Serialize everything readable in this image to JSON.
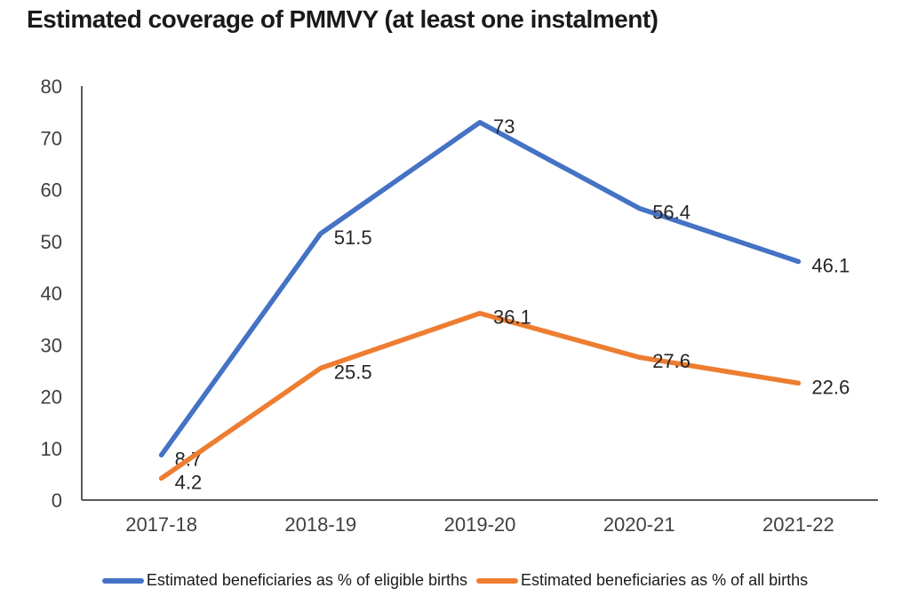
{
  "chart_data": {
    "type": "line",
    "title": "Estimated coverage of PMMVY (at least one instalment)",
    "categories": [
      "2017-18",
      "2018-19",
      "2019-20",
      "2020-21",
      "2021-22"
    ],
    "series": [
      {
        "name": "Estimated beneficiaries as % of eligible births",
        "color": "#4472C4",
        "values": [
          8.7,
          51.5,
          73,
          56.4,
          46.1
        ],
        "labels": [
          "8.7",
          "51.5",
          "73",
          "56.4",
          "46.1"
        ]
      },
      {
        "name": "Estimated beneficiaries as % of all births",
        "color": "#ED7D31",
        "values": [
          4.2,
          25.5,
          36.1,
          27.6,
          22.6
        ],
        "labels": [
          "4.2",
          "25.5",
          "36.1",
          "27.6",
          "22.6"
        ]
      }
    ],
    "ylim": [
      0,
      80
    ],
    "yticks": [
      0,
      10,
      20,
      30,
      40,
      50,
      60,
      70,
      80
    ],
    "grid": false,
    "legend_position": "bottom"
  },
  "colors": {
    "axis": "#595959",
    "tick_text": "#404040",
    "data_label_text": "#262626"
  }
}
